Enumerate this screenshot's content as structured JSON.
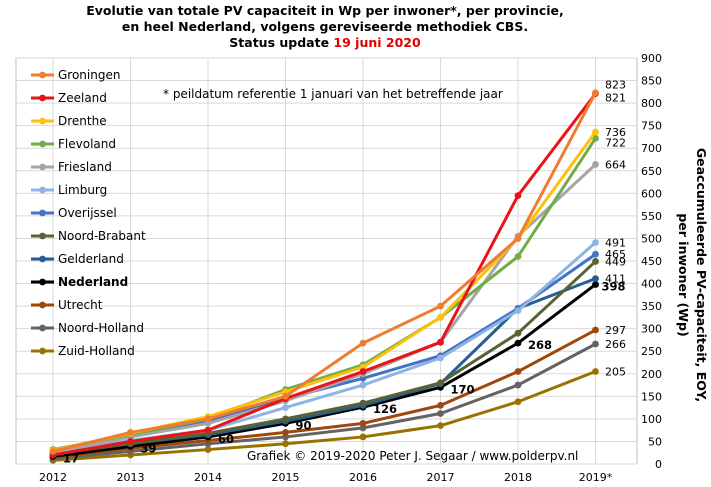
{
  "chart_data": {
    "type": "line",
    "title_line1": "Evolutie van totale PV capaciteit in Wp per inwoner*, per provincie,",
    "title_line2": "en heel Nederland, volgens gereviseerde methodiek CBS.",
    "title_line3_prefix": "Status update",
    "title_line3_date": "19 juni 2020",
    "footnote": "* peildatum  referentie  1 januari  van het betreffende jaar",
    "credit": "Grafiek  © 2019-2020  Peter J. Segaar / www.polderpv.nl",
    "ylabel_line1": "Geaccumuleerde  PV-capaciteit,  EOY,",
    "ylabel_line2": "per inwoner  (Wp)",
    "x": [
      "2012",
      "2013",
      "2014",
      "2015",
      "2016",
      "2017",
      "2018",
      "2019*"
    ],
    "ylim": [
      0,
      900
    ],
    "yticks": [
      "0",
      "50",
      "100",
      "150",
      "200",
      "250",
      "300",
      "350",
      "400",
      "450",
      "500",
      "550",
      "600",
      "650",
      "700",
      "750",
      "800",
      "850",
      "900"
    ],
    "grid": true,
    "legend_position": "top-left",
    "series": [
      {
        "name": "Groningen",
        "color": "#ee7d31",
        "values": [
          28,
          70,
          100,
          150,
          268,
          350,
          500,
          823
        ],
        "end_label": "823"
      },
      {
        "name": "Zeeland",
        "color": "#e8141a",
        "values": [
          20,
          50,
          75,
          145,
          205,
          270,
          595,
          821
        ],
        "end_label": "821"
      },
      {
        "name": "Drenthe",
        "color": "#fdc10d",
        "values": [
          30,
          68,
          105,
          160,
          215,
          325,
          500,
          736
        ],
        "end_label": "736"
      },
      {
        "name": "Flevoland",
        "color": "#70ad47",
        "values": [
          32,
          65,
          100,
          165,
          220,
          325,
          460,
          722
        ],
        "end_label": "722"
      },
      {
        "name": "Friesland",
        "color": "#a5a5a5",
        "values": [
          25,
          60,
          90,
          140,
          200,
          270,
          505,
          664
        ],
        "end_label": "664"
      },
      {
        "name": "Limburg",
        "color": "#8db4e2",
        "values": [
          25,
          52,
          75,
          125,
          175,
          235,
          340,
          491
        ],
        "end_label": "491"
      },
      {
        "name": "Overijssel",
        "color": "#4472c4",
        "values": [
          28,
          62,
          95,
          145,
          190,
          240,
          345,
          465
        ],
        "end_label": "465"
      },
      {
        "name": "Noord-Brabant",
        "color": "#596233",
        "values": [
          22,
          45,
          68,
          100,
          135,
          180,
          290,
          449
        ],
        "end_label": "449"
      },
      {
        "name": "Gelderland",
        "color": "#255e91",
        "values": [
          22,
          45,
          65,
          95,
          130,
          178,
          345,
          411
        ],
        "end_label": "411"
      },
      {
        "name": "Nederland",
        "color": "#000000",
        "bold": true,
        "values": [
          17,
          39,
          60,
          90,
          126,
          170,
          268,
          398
        ],
        "labels": [
          "17",
          "39",
          "60",
          "90",
          "126",
          "170",
          "268",
          "398"
        ]
      },
      {
        "name": "Utrecht",
        "color": "#9e480e",
        "values": [
          15,
          35,
          52,
          70,
          90,
          130,
          205,
          297
        ],
        "end_label": "297"
      },
      {
        "name": "Noord-Holland",
        "color": "#636363",
        "values": [
          12,
          28,
          45,
          60,
          80,
          112,
          175,
          266
        ],
        "end_label": "266"
      },
      {
        "name": "Zuid-Holland",
        "color": "#997300",
        "values": [
          8,
          20,
          32,
          45,
          60,
          85,
          138,
          205
        ],
        "end_label": "205"
      }
    ]
  }
}
